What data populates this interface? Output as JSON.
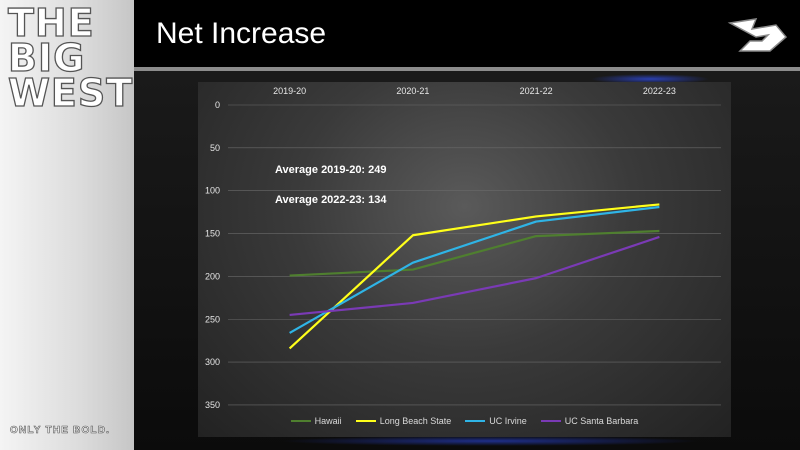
{
  "logo": {
    "lines": [
      "THE",
      "BIG",
      "WEST"
    ],
    "tagline": "ONLY THE BOLD."
  },
  "header": {
    "title": "Net Increase"
  },
  "colors": {
    "Hawaii": "#4f7f2f",
    "Long Beach State": "#ffff1a",
    "UC Irvine": "#2fb4e6",
    "UC Santa Barbara": "#7a3ab5"
  },
  "chart_data": {
    "type": "line",
    "title": "Net Increase",
    "categories": [
      "2019-20",
      "2020-21",
      "2021-22",
      "2022-23"
    ],
    "y_axis": {
      "ylim": [
        0,
        350
      ],
      "inverted": true,
      "ticks": [
        0,
        50,
        100,
        150,
        200,
        250,
        300,
        350
      ]
    },
    "grid": true,
    "legend": "bottom",
    "series": [
      {
        "name": "Hawaii",
        "values": [
          199,
          192,
          153,
          147
        ]
      },
      {
        "name": "Long Beach State",
        "values": [
          284,
          152,
          130,
          116
        ]
      },
      {
        "name": "UC Irvine",
        "values": [
          266,
          184,
          136,
          119
        ]
      },
      {
        "name": "UC Santa Barbara",
        "values": [
          245,
          231,
          202,
          154
        ]
      }
    ],
    "annotations": [
      "Average 2019-20: 249",
      "Average 2022-23: 134"
    ]
  }
}
